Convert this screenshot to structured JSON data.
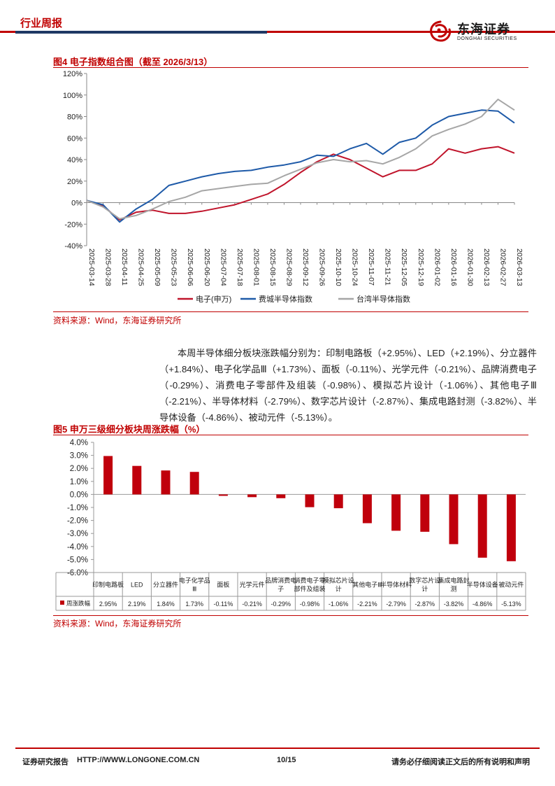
{
  "header": {
    "section_title": "行业周报",
    "logo_cn": "东海证券",
    "logo_en": "DONGHAI SECURITIES"
  },
  "figure4": {
    "title": "图4  电子指数组合图（截至 2026/3/13）",
    "source": "资料来源：Wind，东海证券研究所"
  },
  "paragraph": "本周半导体细分板块涨跌幅分别为：印制电路板（+2.95%）、LED（+2.19%）、分立器件（+1.84%）、电子化学品Ⅲ（+1.73%）、面板（-0.11%）、光学元件（-0.21%）、品牌消费电子（-0.29%）、消费电子零部件及组装（-0.98%）、模拟芯片设计（-1.06%）、其他电子Ⅲ（-2.21%）、半导体材料（-2.79%）、数字芯片设计（-2.87%）、集成电路封测（-3.82%）、半导体设备（-4.86%）、被动元件（-5.13%）。",
  "figure5": {
    "title": "图5  申万三级细分板块周涨跌幅（%）",
    "source": "资料来源：Wind，东海证券研究所"
  },
  "footer": {
    "left": "证券研究报告",
    "url": "HTTP://WWW.LONGONE.COM.CN",
    "page": "10/15",
    "right": "请务必仔细阅读正文后的所有说明和声明"
  },
  "chart_data": [
    {
      "type": "line",
      "x": [
        "2025-03-14",
        "2025-03-28",
        "2025-04-11",
        "2025-04-25",
        "2025-05-09",
        "2025-05-23",
        "2025-06-06",
        "2025-06-20",
        "2025-07-04",
        "2025-07-18",
        "2025-08-01",
        "2025-08-15",
        "2025-08-29",
        "2025-09-12",
        "2025-09-26",
        "2025-10-10",
        "2025-10-24",
        "2025-11-07",
        "2025-11-21",
        "2025-12-05",
        "2025-12-19",
        "2026-01-02",
        "2026-01-16",
        "2026-01-30",
        "2026-02-13",
        "2026-02-27",
        "2026-03-13"
      ],
      "yticks": [
        "-40%",
        "-20%",
        "0%",
        "20%",
        "40%",
        "60%",
        "80%",
        "100%",
        "120%"
      ],
      "ylim": [
        -40,
        120
      ],
      "series": [
        {
          "name": "电子(申万)",
          "color": "#c0142b",
          "values": [
            2,
            -3,
            -16,
            -9,
            -7,
            -10,
            -10,
            -8,
            -5,
            -2,
            3,
            8,
            17,
            28,
            38,
            45,
            40,
            32,
            24,
            30,
            30,
            36,
            50,
            46,
            50,
            52,
            46
          ]
        },
        {
          "name": "费城半导体指数",
          "color": "#1e5aa8",
          "values": [
            2,
            -2,
            -18,
            -6,
            3,
            16,
            20,
            24,
            27,
            29,
            30,
            33,
            35,
            38,
            44,
            43,
            50,
            55,
            45,
            56,
            60,
            72,
            80,
            83,
            86,
            85,
            74
          ]
        },
        {
          "name": "台湾半导体指数",
          "color": "#a6a6a6",
          "values": [
            2,
            -4,
            -15,
            -12,
            -6,
            1,
            5,
            11,
            13,
            15,
            17,
            18,
            25,
            31,
            37,
            40,
            38,
            39,
            36,
            42,
            50,
            62,
            68,
            73,
            80,
            96,
            86
          ]
        }
      ]
    },
    {
      "type": "bar",
      "categories": [
        "印制电路板",
        "LED",
        "分立器件",
        "电子化学品Ⅲ",
        "面板",
        "光学元件",
        "品牌消费电子",
        "消费电子零部件及组装",
        "模拟芯片设计",
        "其他电子Ⅲ",
        "半导体材料",
        "数字芯片设计",
        "集成电路封测",
        "半导体设备",
        "被动元件"
      ],
      "values": [
        2.95,
        2.19,
        1.84,
        1.73,
        -0.11,
        -0.21,
        -0.29,
        -0.98,
        -1.06,
        -2.21,
        -2.79,
        -2.87,
        -3.82,
        -4.86,
        -5.13
      ],
      "value_labels": [
        "2.95%",
        "2.19%",
        "1.84%",
        "1.73%",
        "-0.11%",
        "-0.21%",
        "-0.29%",
        "-0.98%",
        "-1.06%",
        "-2.21%",
        "-2.79%",
        "-2.87%",
        "-3.82%",
        "-4.86%",
        "-5.13%"
      ],
      "yticks": [
        "4.0%",
        "3.0%",
        "2.0%",
        "1.0%",
        "0.0%",
        "-1.0%",
        "-2.0%",
        "-3.0%",
        "-4.0%",
        "-5.0%",
        "-6.0%"
      ],
      "ylim": [
        -6,
        4
      ],
      "legend": "周涨跌幅",
      "color": "#c0000c"
    }
  ]
}
